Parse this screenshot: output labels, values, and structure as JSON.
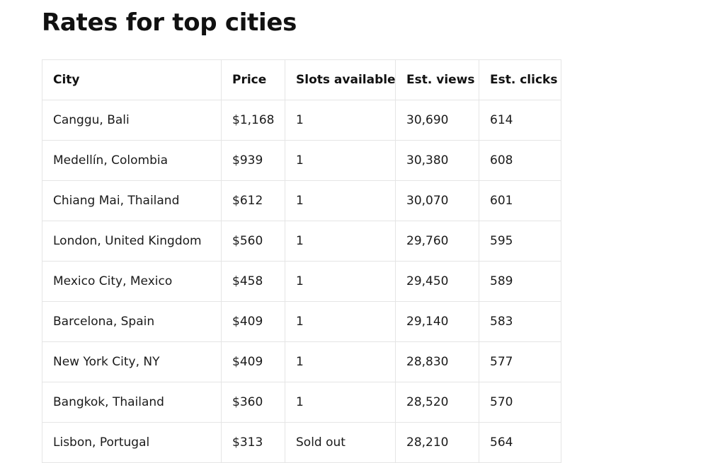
{
  "page": {
    "title": "Rates for top cities"
  },
  "table": {
    "headers": {
      "city": "City",
      "price": "Price",
      "slots": "Slots available",
      "views": "Est. views",
      "clicks": "Est. clicks"
    },
    "rows": [
      {
        "city": "Canggu, Bali",
        "price": "$1,168",
        "slots": "1",
        "views": "30,690",
        "clicks": "614"
      },
      {
        "city": "Medellín, Colombia",
        "price": "$939",
        "slots": "1",
        "views": "30,380",
        "clicks": "608"
      },
      {
        "city": "Chiang Mai, Thailand",
        "price": "$612",
        "slots": "1",
        "views": "30,070",
        "clicks": "601"
      },
      {
        "city": "London, United Kingdom",
        "price": "$560",
        "slots": "1",
        "views": "29,760",
        "clicks": "595"
      },
      {
        "city": "Mexico City, Mexico",
        "price": "$458",
        "slots": "1",
        "views": "29,450",
        "clicks": "589"
      },
      {
        "city": "Barcelona, Spain",
        "price": "$409",
        "slots": "1",
        "views": "29,140",
        "clicks": "583"
      },
      {
        "city": "New York City, NY",
        "price": "$409",
        "slots": "1",
        "views": "28,830",
        "clicks": "577"
      },
      {
        "city": "Bangkok, Thailand",
        "price": "$360",
        "slots": "1",
        "views": "28,520",
        "clicks": "570"
      },
      {
        "city": "Lisbon, Portugal",
        "price": "$313",
        "slots": "Sold out",
        "views": "28,210",
        "clicks": "564"
      }
    ]
  },
  "colors": {
    "text": "#111111",
    "border": "#e5e5e5",
    "background": "#ffffff"
  }
}
